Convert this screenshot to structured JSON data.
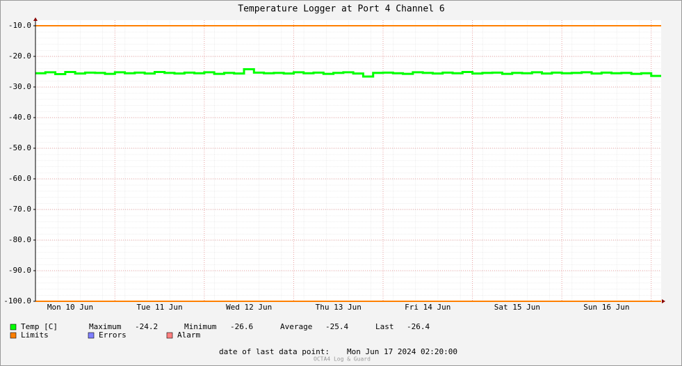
{
  "chart_data": {
    "type": "line",
    "title": "Temperature Logger at Port 4 Channel 6",
    "categories": [
      null,
      null,
      null,
      "Mon 10 Jun",
      null,
      null,
      null,
      null,
      null,
      null,
      null,
      null,
      "Tue 11 Jun",
      null,
      null,
      null,
      null,
      null,
      null,
      null,
      null,
      "Wed 12 Jun",
      null,
      null,
      null,
      null,
      null,
      null,
      null,
      null,
      "Thu 13 Jun",
      null,
      null,
      null,
      null,
      null,
      null,
      null,
      null,
      "Fri 14 Jun",
      null,
      null,
      null,
      null,
      null,
      null,
      null,
      null,
      "Sat 15 Jun",
      null,
      null,
      null,
      null,
      null,
      null,
      null,
      null,
      "Sun 16 Jun",
      null,
      null,
      null,
      null,
      null
    ],
    "series": [
      {
        "name": "Temp [C]",
        "color": "#00ff00",
        "values": [
          -25.5,
          -25.2,
          -25.8,
          -25.1,
          -25.6,
          -25.3,
          -25.4,
          -25.7,
          -25.2,
          -25.5,
          -25.3,
          -25.6,
          -25.1,
          -25.4,
          -25.6,
          -25.3,
          -25.5,
          -25.2,
          -25.7,
          -25.4,
          -25.6,
          -24.2,
          -25.3,
          -25.5,
          -25.4,
          -25.6,
          -25.2,
          -25.5,
          -25.3,
          -25.7,
          -25.4,
          -25.2,
          -25.6,
          -26.6,
          -25.4,
          -25.3,
          -25.5,
          -25.7,
          -25.2,
          -25.4,
          -25.6,
          -25.3,
          -25.5,
          -25.1,
          -25.6,
          -25.4,
          -25.3,
          -25.7,
          -25.4,
          -25.5,
          -25.2,
          -25.6,
          -25.3,
          -25.5,
          -25.4,
          -25.2,
          -25.6,
          -25.3,
          -25.5,
          -25.4,
          -25.7,
          -25.5,
          -26.4
        ]
      }
    ],
    "limits": [
      -10,
      -100
    ],
    "legend": [
      {
        "name": "Temp [C]",
        "color": "#00ff00"
      },
      {
        "name": "Limits",
        "color": "#ff7f00"
      },
      {
        "name": "Errors",
        "color": "#7f7fff"
      },
      {
        "name": "Alarm",
        "color": "#ff7f7f"
      }
    ],
    "stats": [
      {
        "label": "Maximum",
        "value": -24.2
      },
      {
        "label": "Minimum",
        "value": -26.6
      },
      {
        "label": "Average",
        "value": -25.4
      },
      {
        "label": "Last",
        "value": -26.4
      }
    ],
    "last_point_label": "date of last data point:",
    "last_point": "Mon Jun 17 2024 02:20:00",
    "footer": "OCTA4 Log & Guard",
    "ylim": [
      -100,
      -10
    ],
    "yticks": [
      {
        "value": -100,
        "label": "-100.0"
      },
      {
        "value": -90,
        "label": "-90.0"
      },
      {
        "value": -80,
        "label": "-80.0"
      },
      {
        "value": -70,
        "label": "-70.0"
      },
      {
        "value": -60,
        "label": "-60.0"
      },
      {
        "value": -50,
        "label": "-50.0"
      },
      {
        "value": -40,
        "label": "-40.0"
      },
      {
        "value": -30,
        "label": "-30.0"
      },
      {
        "value": -20,
        "label": "-20.0"
      },
      {
        "value": -10,
        "label": "-10.0"
      }
    ],
    "grid": true
  }
}
